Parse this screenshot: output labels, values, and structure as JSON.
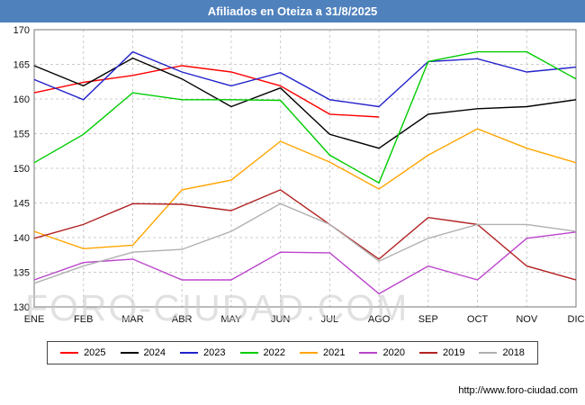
{
  "title": "Afiliados en Oteiza a 31/8/2025",
  "watermark": "FORO-CIUDAD.COM",
  "source_url": "http://www.foro-ciudad.com",
  "colors": {
    "title_bar": "#4f81bd",
    "title_text": "#ffffff",
    "grid": "#cccccc",
    "axis": "#777777",
    "tick_text": "#111111"
  },
  "chart_data": {
    "type": "line",
    "title": "Afiliados en Oteiza a 31/8/2025",
    "xlabel": "",
    "ylabel": "",
    "x": [
      "ENE",
      "FEB",
      "MAR",
      "ABR",
      "MAY",
      "JUN",
      "JUL",
      "AGO",
      "SEP",
      "OCT",
      "NOV",
      "DIC"
    ],
    "ylim": [
      130,
      170
    ],
    "yticks": [
      130,
      135,
      140,
      145,
      150,
      155,
      160,
      165,
      170
    ],
    "grid": true,
    "legend_position": "bottom",
    "series": [
      {
        "name": "2025",
        "color": "#ff0000",
        "values": [
          160.9,
          162.4,
          163.4,
          164.8,
          163.9,
          161.9,
          157.8,
          157.4,
          null,
          null,
          null,
          null
        ]
      },
      {
        "name": "2024",
        "color": "#000000",
        "values": [
          164.8,
          161.9,
          165.9,
          162.9,
          158.9,
          161.6,
          154.9,
          152.9,
          157.8,
          158.6,
          158.9,
          159.9
        ]
      },
      {
        "name": "2023",
        "color": "#2222cc",
        "values": [
          162.8,
          159.9,
          166.8,
          163.9,
          161.9,
          163.8,
          159.9,
          158.9,
          165.4,
          165.8,
          163.9,
          164.6
        ]
      },
      {
        "name": "2022",
        "color": "#00cc00",
        "values": [
          150.8,
          154.9,
          160.9,
          159.9,
          159.9,
          159.8,
          151.9,
          147.9,
          165.4,
          166.8,
          166.8,
          162.9
        ]
      },
      {
        "name": "2021",
        "color": "#ffa500",
        "values": [
          140.9,
          138.4,
          138.9,
          146.9,
          148.3,
          153.9,
          150.9,
          147.0,
          151.9,
          155.7,
          152.9,
          150.8
        ]
      },
      {
        "name": "2020",
        "color": "#bb44cc",
        "values": [
          133.9,
          136.4,
          136.9,
          133.9,
          133.9,
          137.9,
          137.8,
          131.9,
          135.9,
          133.9,
          139.9,
          140.8
        ]
      },
      {
        "name": "2019",
        "color": "#b22222",
        "values": [
          139.9,
          141.9,
          144.9,
          144.8,
          143.9,
          146.9,
          141.9,
          136.9,
          142.9,
          141.9,
          135.9,
          133.9
        ]
      },
      {
        "name": "2018",
        "color": "#b0b0b0",
        "values": [
          133.4,
          135.9,
          137.9,
          138.3,
          140.9,
          144.9,
          141.9,
          136.6,
          139.9,
          141.9,
          141.9,
          140.9
        ]
      }
    ]
  }
}
